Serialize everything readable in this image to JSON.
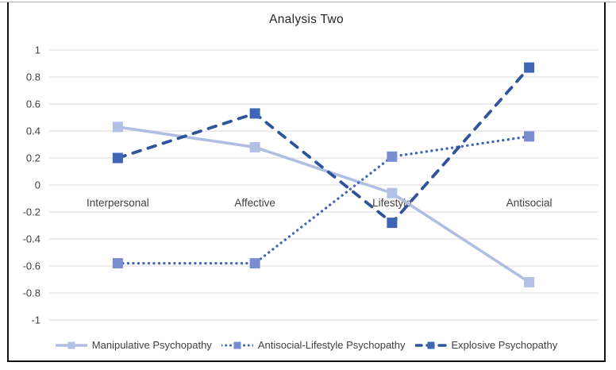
{
  "chart_data": {
    "type": "line",
    "title": "Analysis Two",
    "xlabel": "",
    "ylabel": "",
    "categories": [
      "Interpersonal",
      "Affective",
      "Lifestyle",
      "Antisocial"
    ],
    "series": [
      {
        "name": "Manipulative Psychopathy",
        "values": [
          0.43,
          0.28,
          -0.06,
          -0.72
        ],
        "style": "solid",
        "line_color": "#b1bee3",
        "marker_color": "#b3c0e5"
      },
      {
        "name": "Antisocial-Lifestyle Psychopathy",
        "values": [
          -0.58,
          -0.58,
          0.21,
          0.36
        ],
        "style": "dotted",
        "line_color": "#4067b5",
        "marker_color": "#7b8dd1"
      },
      {
        "name": "Explosive Psychopathy",
        "values": [
          0.2,
          0.53,
          -0.28,
          0.87
        ],
        "style": "dashed",
        "line_color": "#2e549c",
        "marker_color": "#3f66b6"
      }
    ],
    "ylim": [
      -1,
      1
    ],
    "ytick_step": 0.2,
    "ytick_labels": [
      "1",
      "0.8",
      "0.6",
      "0.4",
      "0.2",
      "0",
      "-0.2",
      "-0.4",
      "-0.6",
      "-0.8",
      "-1"
    ],
    "grid": true,
    "gridline_color": "#d9d9d9",
    "axis_text_color": "#404040",
    "title_color": "#262626",
    "legend_position": "bottom"
  }
}
